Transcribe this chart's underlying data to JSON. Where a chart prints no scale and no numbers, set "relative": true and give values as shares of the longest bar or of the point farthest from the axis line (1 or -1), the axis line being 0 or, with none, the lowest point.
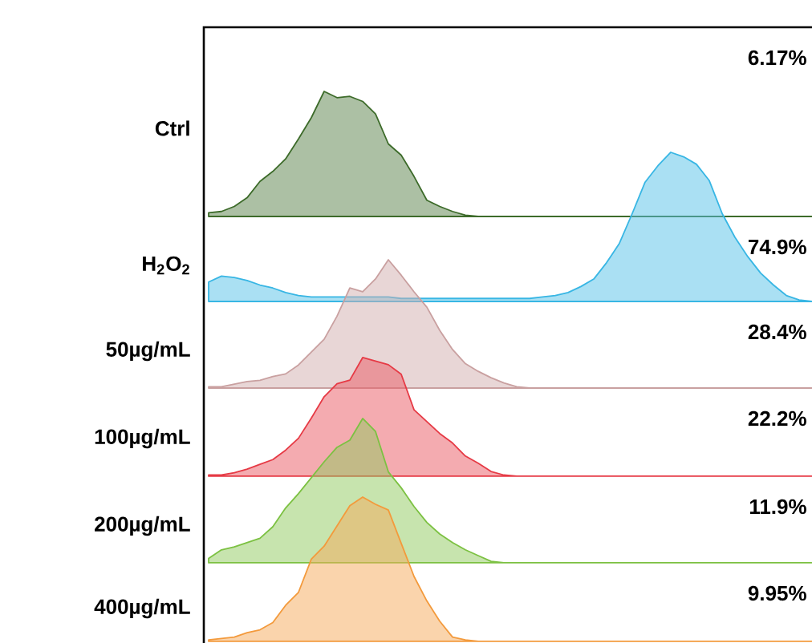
{
  "chart_data": [
    {
      "type": "area",
      "relative": true,
      "ylabel": "Ctrl",
      "color": "#3d6b2a",
      "annotations": [
        "6.17%"
      ],
      "categories": [
        null,
        null,
        null,
        null,
        null,
        null,
        null,
        null,
        null,
        null,
        null,
        null,
        null,
        null,
        null,
        null,
        null,
        null,
        null,
        null,
        null,
        null,
        null,
        null,
        null,
        null,
        null,
        null,
        null,
        null,
        null,
        null,
        null,
        null,
        null,
        null,
        null,
        null,
        null,
        null,
        null,
        null,
        null,
        null,
        null,
        null,
        null,
        null
      ],
      "values": [
        0.03,
        0.04,
        0.08,
        0.15,
        0.28,
        0.36,
        0.46,
        0.62,
        0.79,
        1,
        0.95,
        0.96,
        0.92,
        0.82,
        0.58,
        0.49,
        0.32,
        0.13,
        0.08,
        0.04,
        0.01,
        0,
        0,
        0,
        0,
        0,
        0,
        0,
        0,
        0,
        0,
        0,
        0,
        0,
        0,
        0,
        0,
        0,
        0,
        0,
        0,
        0,
        0,
        0,
        0,
        0,
        0,
        0
      ]
    },
    {
      "type": "area",
      "relative": true,
      "ylabel": "H$_{2}$O$_{2}$",
      "color": "#38b6e4",
      "annotations": [
        "74.9%"
      ],
      "categories": [
        null,
        null,
        null,
        null,
        null,
        null,
        null,
        null,
        null,
        null,
        null,
        null,
        null,
        null,
        null,
        null,
        null,
        null,
        null,
        null,
        null,
        null,
        null,
        null,
        null,
        null,
        null,
        null,
        null,
        null,
        null,
        null,
        null,
        null,
        null,
        null,
        null,
        null,
        null,
        null,
        null,
        null,
        null,
        null,
        null,
        null,
        null,
        null
      ],
      "values": [
        0.13,
        0.17,
        0.16,
        0.14,
        0.11,
        0.09,
        0.06,
        0.04,
        0.03,
        0.03,
        0.03,
        0.03,
        0.03,
        0.03,
        0.03,
        0.02,
        0.02,
        0.02,
        0.02,
        0.02,
        0.02,
        0.02,
        0.02,
        0.02,
        0.02,
        0.02,
        0.03,
        0.04,
        0.06,
        0.1,
        0.15,
        0.26,
        0.39,
        0.59,
        0.8,
        0.91,
        1,
        0.97,
        0.92,
        0.81,
        0.59,
        0.43,
        0.3,
        0.19,
        0.11,
        0.04,
        0.01,
        0
      ]
    },
    {
      "type": "area",
      "relative": true,
      "ylabel": "50µg/mL",
      "color": "#c9a0a0",
      "annotations": [
        "28.4%"
      ],
      "categories": [
        null,
        null,
        null,
        null,
        null,
        null,
        null,
        null,
        null,
        null,
        null,
        null,
        null,
        null,
        null,
        null,
        null,
        null,
        null,
        null,
        null,
        null,
        null,
        null,
        null,
        null,
        null,
        null,
        null,
        null,
        null,
        null,
        null,
        null,
        null,
        null,
        null,
        null,
        null,
        null,
        null,
        null,
        null,
        null,
        null,
        null,
        null,
        null
      ],
      "values": [
        0.01,
        0.01,
        0.03,
        0.05,
        0.06,
        0.09,
        0.11,
        0.18,
        0.28,
        0.38,
        0.56,
        0.78,
        0.75,
        0.85,
        1,
        0.88,
        0.75,
        0.63,
        0.45,
        0.3,
        0.19,
        0.13,
        0.08,
        0.04,
        0.01,
        0,
        0,
        0,
        0,
        0,
        0,
        0,
        0,
        0,
        0,
        0,
        0,
        0,
        0,
        0,
        0,
        0,
        0,
        0,
        0,
        0,
        0,
        0
      ]
    },
    {
      "type": "area",
      "relative": true,
      "ylabel": "100µg/mL",
      "color": "#e63a45",
      "annotations": [
        "22.2%"
      ],
      "categories": [
        null,
        null,
        null,
        null,
        null,
        null,
        null,
        null,
        null,
        null,
        null,
        null,
        null,
        null,
        null,
        null,
        null,
        null,
        null,
        null,
        null,
        null,
        null,
        null,
        null,
        null,
        null,
        null,
        null,
        null,
        null,
        null,
        null,
        null,
        null,
        null,
        null,
        null,
        null,
        null,
        null,
        null,
        null,
        null,
        null,
        null,
        null,
        null
      ],
      "values": [
        0.01,
        0.01,
        0.03,
        0.06,
        0.1,
        0.14,
        0.22,
        0.32,
        0.49,
        0.67,
        0.78,
        0.81,
        1,
        0.97,
        0.94,
        0.86,
        0.56,
        0.46,
        0.36,
        0.28,
        0.17,
        0.11,
        0.04,
        0.01,
        0,
        0,
        0,
        0,
        0,
        0,
        0,
        0,
        0,
        0,
        0,
        0,
        0,
        0,
        0,
        0,
        0,
        0,
        0,
        0,
        0,
        0,
        0,
        0
      ]
    },
    {
      "type": "area",
      "relative": true,
      "ylabel": "200µg/mL",
      "color": "#7cc142",
      "annotations": [
        "11.9%"
      ],
      "categories": [
        null,
        null,
        null,
        null,
        null,
        null,
        null,
        null,
        null,
        null,
        null,
        null,
        null,
        null,
        null,
        null,
        null,
        null,
        null,
        null,
        null,
        null,
        null,
        null,
        null,
        null,
        null,
        null,
        null,
        null,
        null,
        null,
        null,
        null,
        null,
        null,
        null,
        null,
        null,
        null,
        null,
        null,
        null,
        null,
        null,
        null,
        null,
        null
      ],
      "values": [
        0.03,
        0.09,
        0.11,
        0.14,
        0.17,
        0.25,
        0.38,
        0.48,
        0.59,
        0.7,
        0.8,
        0.85,
        1,
        0.91,
        0.63,
        0.52,
        0.39,
        0.28,
        0.2,
        0.14,
        0.09,
        0.05,
        0.01,
        0,
        0,
        0,
        0,
        0,
        0,
        0,
        0,
        0,
        0,
        0,
        0,
        0,
        0,
        0,
        0,
        0,
        0,
        0,
        0,
        0,
        0,
        0,
        0,
        0
      ]
    },
    {
      "type": "area",
      "relative": true,
      "ylabel": "400µg/mL",
      "color": "#f39a3c",
      "annotations": [
        "9.95%"
      ],
      "categories": [
        null,
        null,
        null,
        null,
        null,
        null,
        null,
        null,
        null,
        null,
        null,
        null,
        null,
        null,
        null,
        null,
        null,
        null,
        null,
        null,
        null,
        null,
        null,
        null,
        null,
        null,
        null,
        null,
        null,
        null,
        null,
        null,
        null,
        null,
        null,
        null,
        null,
        null,
        null,
        null,
        null,
        null,
        null,
        null,
        null,
        null,
        null,
        null
      ],
      "values": [
        0.01,
        0.02,
        0.03,
        0.06,
        0.08,
        0.13,
        0.25,
        0.34,
        0.57,
        0.66,
        0.8,
        0.94,
        1,
        0.95,
        0.91,
        0.68,
        0.45,
        0.28,
        0.14,
        0.03,
        0.01,
        0,
        0,
        0,
        0,
        0,
        0,
        0,
        0,
        0,
        0,
        0,
        0,
        0,
        0,
        0,
        0,
        0,
        0,
        0,
        0,
        0,
        0,
        0,
        0,
        0,
        0,
        0
      ]
    }
  ]
}
